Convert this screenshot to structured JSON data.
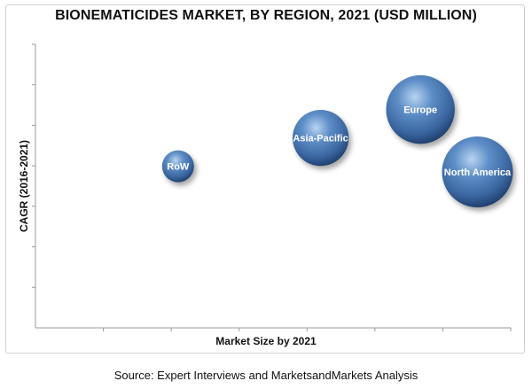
{
  "chart_data": {
    "type": "bubble",
    "title": "BIONEMATICIDES MARKET, BY REGION, 2021 (USD MILLION)",
    "xlabel": "Market Size by 2021",
    "ylabel": "CAGR (2016-2021)",
    "xlim": [
      0,
      100
    ],
    "ylim": [
      0,
      100
    ],
    "grid": false,
    "legend": "none",
    "bubble_color": "#3f6fa8",
    "series": [
      {
        "label": "RoW",
        "x": 30,
        "y": 57,
        "size": 6.5
      },
      {
        "label": "Asia-Pacific",
        "x": 60,
        "y": 67,
        "size": 20
      },
      {
        "label": "Europe",
        "x": 81,
        "y": 77,
        "size": 30
      },
      {
        "label": "North America",
        "x": 93,
        "y": 55,
        "size": 32
      }
    ]
  },
  "source": "Source: Expert Interviews and MarketsandMarkets Analysis"
}
